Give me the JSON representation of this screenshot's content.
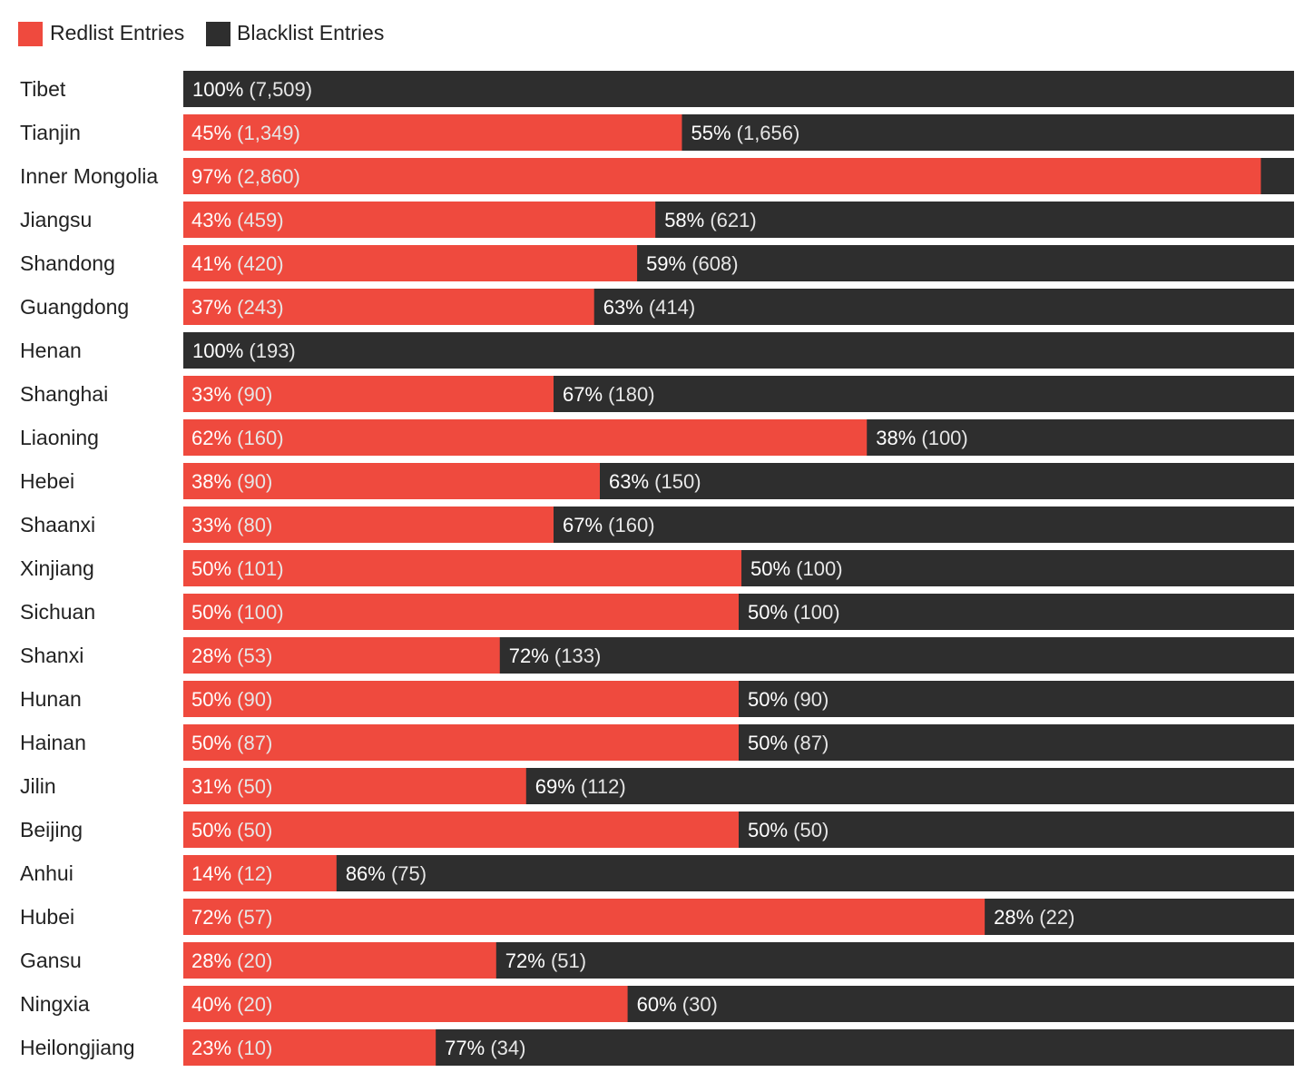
{
  "colors": {
    "redlist": "#ef4a3e",
    "blacklist": "#2e2e2e"
  },
  "legend": {
    "redlist_label": "Redlist Entries",
    "blacklist_label": "Blacklist Entries"
  },
  "chart_data": {
    "type": "bar",
    "orientation": "horizontal",
    "stacked": "percent",
    "legend_position": "top-left",
    "grid": false,
    "categories": [
      "Tibet",
      "Tianjin",
      "Inner Mongolia",
      "Jiangsu",
      "Shandong",
      "Guangdong",
      "Henan",
      "Shanghai",
      "Liaoning",
      "Hebei",
      "Shaanxi",
      "Xinjiang",
      "Sichuan",
      "Shanxi",
      "Hunan",
      "Hainan",
      "Jilin",
      "Beijing",
      "Anhui",
      "Hubei",
      "Gansu",
      "Ningxia",
      "Heilongjiang"
    ],
    "series": [
      {
        "name": "Redlist Entries",
        "values": [
          0,
          1349,
          2860,
          459,
          420,
          243,
          0,
          90,
          160,
          90,
          80,
          101,
          100,
          53,
          90,
          87,
          50,
          50,
          12,
          57,
          20,
          20,
          10
        ],
        "percent": [
          0,
          45,
          97,
          43,
          41,
          37,
          0,
          33,
          62,
          38,
          33,
          50,
          50,
          28,
          50,
          50,
          31,
          50,
          14,
          72,
          28,
          40,
          23
        ],
        "labels": [
          "",
          "45% (1,349)",
          "97% (2,860)",
          "43% (459)",
          "41% (420)",
          "37% (243)",
          "",
          "33% (90)",
          "62% (160)",
          "38% (90)",
          "33% (80)",
          "50% (101)",
          "50% (100)",
          "28% (53)",
          "50% (90)",
          "50% (87)",
          "31% (50)",
          "50% (50)",
          "14% (12)",
          "72% (57)",
          "28% (20)",
          "40% (20)",
          "23% (10)"
        ]
      },
      {
        "name": "Blacklist Entries",
        "values": [
          7509,
          1656,
          88,
          621,
          608,
          414,
          193,
          180,
          100,
          150,
          160,
          100,
          100,
          133,
          90,
          87,
          112,
          50,
          75,
          22,
          51,
          30,
          34
        ],
        "percent": [
          100,
          55,
          3,
          58,
          59,
          63,
          100,
          67,
          38,
          63,
          67,
          50,
          50,
          72,
          50,
          50,
          69,
          50,
          86,
          28,
          72,
          60,
          77
        ],
        "labels": [
          "100% (7,509)",
          "55% (1,656)",
          "",
          "58% (621)",
          "59% (608)",
          "63% (414)",
          "100% (193)",
          "67% (180)",
          "38% (100)",
          "63% (150)",
          "67% (160)",
          "50% (100)",
          "50% (100)",
          "72% (133)",
          "50% (90)",
          "50% (87)",
          "69% (112)",
          "50% (50)",
          "86% (75)",
          "28% (22)",
          "72% (51)",
          "60% (30)",
          "77% (34)"
        ]
      }
    ]
  }
}
